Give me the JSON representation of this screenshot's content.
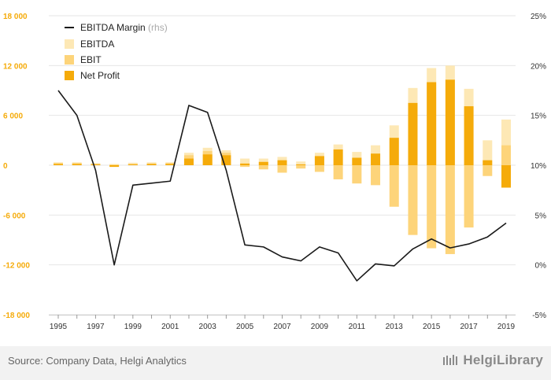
{
  "chart_data": {
    "type": "bar",
    "x": [
      "1995",
      "1996",
      "1997",
      "1998",
      "1999",
      "2000",
      "2001",
      "2002",
      "2003",
      "2004",
      "2005",
      "2006",
      "2007",
      "2008",
      "2009",
      "2010",
      "2011",
      "2012",
      "2013",
      "2014",
      "2015",
      "2016",
      "2017",
      "2018",
      "2019"
    ],
    "x_tick_labels": [
      "1995",
      "1997",
      "1999",
      "2001",
      "2003",
      "2005",
      "2007",
      "2009",
      "2011",
      "2013",
      "2015",
      "2017",
      "2019"
    ],
    "series": [
      {
        "name": "EBITDA",
        "kind": "bar",
        "values": [
          350,
          350,
          250,
          150,
          300,
          350,
          350,
          1500,
          2100,
          1800,
          800,
          800,
          1000,
          450,
          1500,
          2500,
          1600,
          2400,
          4800,
          9300,
          11700,
          12000,
          9200,
          3000,
          5500
        ]
      },
      {
        "name": "EBIT",
        "kind": "bar",
        "values": [
          250,
          250,
          150,
          50,
          150,
          200,
          250,
          1200,
          1700,
          1500,
          -200,
          -500,
          -900,
          -400,
          -800,
          -1700,
          -2200,
          -2400,
          -5000,
          -8400,
          -10000,
          -10700,
          -7500,
          -1300,
          2400
        ]
      },
      {
        "name": "Net Profit",
        "kind": "bar",
        "values": [
          150,
          150,
          100,
          -200,
          100,
          150,
          150,
          800,
          1300,
          1200,
          200,
          400,
          600,
          100,
          1100,
          1900,
          900,
          1400,
          3300,
          7500,
          10000,
          10300,
          7100,
          600,
          -2700
        ]
      },
      {
        "name": "EBITDA Margin",
        "name_suffix": "(rhs)",
        "kind": "line",
        "axis": "right",
        "values": [
          17.5,
          15.0,
          9.5,
          0.0,
          8.0,
          8.2,
          8.4,
          16.0,
          15.3,
          9.5,
          2.0,
          1.8,
          0.8,
          0.4,
          1.8,
          1.2,
          -1.6,
          0.1,
          -0.1,
          1.6,
          2.6,
          1.7,
          2.1,
          2.8,
          4.2
        ]
      }
    ],
    "y_left": {
      "ticks": [
        18000,
        12000,
        6000,
        0,
        -6000,
        -12000,
        -18000
      ],
      "tick_labels": [
        "18 000",
        "12 000",
        "6 000",
        "0",
        "-6 000",
        "-12 000",
        "-18 000"
      ],
      "range": [
        -18000,
        18000
      ]
    },
    "y_right": {
      "ticks": [
        25,
        20,
        15,
        10,
        5,
        0,
        -5
      ],
      "tick_labels": [
        "25%",
        "20%",
        "15%",
        "10%",
        "5%",
        "0%",
        "-5%"
      ],
      "range": [
        -5,
        25
      ]
    },
    "legend_placement": "top-left",
    "grid": true
  },
  "colors": {
    "ebitda": "#fde8b5",
    "ebit": "#fdd47a",
    "net_profit": "#f5ab0a",
    "line": "#1a1a1a",
    "axis_labels": "#f5ab0a",
    "grid": "#e6e6e6",
    "footer_bg": "#f2f2f2"
  },
  "footer": {
    "source": "Source: Company Data, Helgi Analytics",
    "brand": "HelgiLibrary"
  }
}
